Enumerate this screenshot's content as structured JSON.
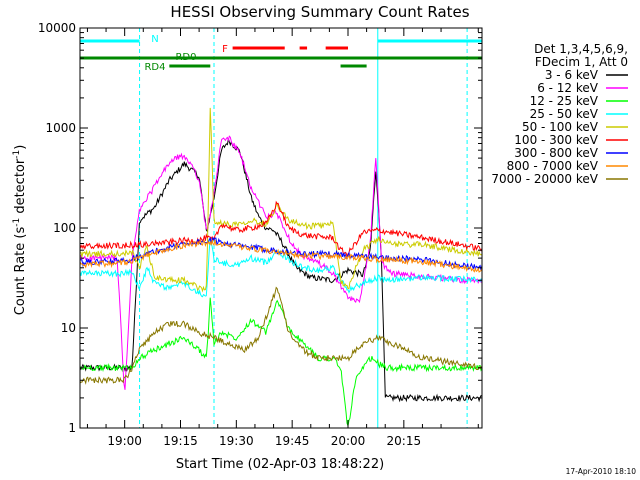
{
  "chart_data": {
    "type": "line",
    "title": "HESSI Observing Summary Count Rates",
    "xlabel": "Start Time (02-Apr-03 18:48:22)",
    "ylabel_prefix": "Count Rate (s",
    "ylabel_sup": "-1",
    "ylabel_mid": " detector",
    "ylabel_suffix": ")",
    "y_scale": "log",
    "ylim": [
      1,
      10000
    ],
    "xlim": [
      -12,
      96
    ],
    "x_unit": "minutes after 19:00",
    "x_ticks": [
      {
        "t": 0,
        "label": "19:00"
      },
      {
        "t": 15,
        "label": "19:15"
      },
      {
        "t": 30,
        "label": "19:30"
      },
      {
        "t": 45,
        "label": "19:45"
      },
      {
        "t": 60,
        "label": "20:00"
      },
      {
        "t": 75,
        "label": "20:15"
      }
    ],
    "y_ticks": [
      {
        "v": 1,
        "label": "1"
      },
      {
        "v": 10,
        "label": "10"
      },
      {
        "v": 100,
        "label": "100"
      },
      {
        "v": 1000,
        "label": "1000"
      },
      {
        "v": 10000,
        "label": "10000"
      }
    ],
    "legend": {
      "placement": "right",
      "header1": "Det 1,3,4,5,6,9,",
      "header2": "FDecim 1, Att 0"
    },
    "series": [
      {
        "name": "3 - 6 keV",
        "color": "#000000",
        "t": [
          -12,
          0,
          2,
          4,
          8,
          12,
          16,
          20,
          22,
          24,
          26,
          28,
          31,
          34,
          36,
          38,
          40,
          42,
          44,
          46,
          50,
          56,
          60,
          64,
          66,
          67.5,
          69,
          70
        ],
        "values": [
          4,
          4,
          4,
          120,
          160,
          300,
          440,
          330,
          90,
          200,
          600,
          750,
          580,
          200,
          130,
          100,
          95,
          75,
          55,
          40,
          32,
          30,
          38,
          34,
          60,
          400,
          50,
          2
        ]
      },
      {
        "name": "6 - 12 keV",
        "color": "#ff00ff",
        "t": [
          -12,
          -2,
          0,
          2,
          4,
          8,
          12,
          15,
          18,
          20,
          22,
          24,
          26,
          28,
          31,
          34,
          38,
          41,
          44,
          48,
          52,
          56,
          60,
          63,
          66,
          67.5,
          69,
          72,
          80,
          90,
          96
        ],
        "values": [
          50,
          50,
          2,
          50,
          150,
          260,
          450,
          530,
          440,
          300,
          90,
          220,
          750,
          800,
          550,
          250,
          130,
          140,
          80,
          50,
          45,
          35,
          20,
          18,
          70,
          550,
          45,
          35,
          33,
          30,
          30
        ]
      },
      {
        "name": "12 - 25 keV",
        "color": "#00ff00",
        "t": [
          -12,
          0,
          2,
          4,
          8,
          12,
          16,
          20,
          22,
          23,
          24,
          26,
          30,
          34,
          38,
          41,
          44,
          48,
          52,
          56,
          58,
          60,
          62,
          66,
          70,
          80,
          96
        ],
        "values": [
          4,
          4,
          4,
          5,
          6,
          7,
          8,
          6,
          5,
          20,
          7,
          9,
          8,
          12,
          9,
          19,
          10,
          7,
          5,
          5,
          4,
          1,
          3,
          5,
          4,
          4,
          4
        ]
      },
      {
        "name": "25 - 50 keV",
        "color": "#00ffff",
        "t": [
          -12,
          0,
          2,
          4,
          6,
          8,
          12,
          16,
          20,
          22,
          23,
          24,
          26,
          30,
          34,
          38,
          41,
          44,
          48,
          52,
          56,
          58,
          60,
          64,
          68,
          70,
          80,
          96
        ],
        "values": [
          35,
          35,
          38,
          24,
          40,
          28,
          25,
          28,
          22,
          22,
          80,
          50,
          45,
          42,
          50,
          45,
          60,
          48,
          40,
          38,
          40,
          30,
          24,
          28,
          32,
          30,
          32,
          30
        ]
      },
      {
        "name": "50 - 100 keV",
        "color": "#cccc00",
        "t": [
          -12,
          0,
          2,
          4,
          6,
          8,
          12,
          16,
          20,
          22,
          23,
          24,
          26,
          30,
          34,
          38,
          41,
          44,
          48,
          52,
          56,
          58,
          60,
          64,
          68,
          70,
          80,
          96
        ],
        "values": [
          55,
          55,
          58,
          40,
          65,
          32,
          30,
          30,
          25,
          25,
          1700,
          120,
          110,
          110,
          120,
          110,
          170,
          120,
          105,
          105,
          110,
          30,
          25,
          60,
          78,
          70,
          68,
          55
        ]
      },
      {
        "name": "100 - 300 keV",
        "color": "#ff0000",
        "t": [
          -12,
          0,
          4,
          8,
          12,
          16,
          20,
          22,
          24,
          26,
          30,
          34,
          38,
          41,
          44,
          48,
          52,
          56,
          58,
          60,
          64,
          68,
          72,
          80,
          96
        ],
        "values": [
          65,
          67,
          68,
          70,
          72,
          75,
          75,
          80,
          75,
          110,
          95,
          100,
          110,
          180,
          100,
          85,
          82,
          80,
          60,
          55,
          90,
          95,
          90,
          80,
          62
        ]
      },
      {
        "name": "300 - 800 keV",
        "color": "#0000ff",
        "t": [
          -12,
          0,
          8,
          16,
          24,
          32,
          40,
          48,
          56,
          64,
          72,
          80,
          96
        ],
        "values": [
          45,
          47,
          58,
          70,
          75,
          65,
          60,
          55,
          55,
          52,
          50,
          48,
          40
        ]
      },
      {
        "name": "800 - 7000 keV",
        "color": "#ff8800",
        "t": [
          -12,
          0,
          8,
          16,
          24,
          32,
          40,
          48,
          56,
          64,
          72,
          80,
          96
        ],
        "values": [
          43,
          45,
          56,
          68,
          72,
          63,
          58,
          53,
          52,
          50,
          48,
          46,
          38
        ]
      },
      {
        "name": "7000 - 20000 keV",
        "color": "#887700",
        "t": [
          -12,
          0,
          2,
          4,
          8,
          12,
          16,
          20,
          24,
          28,
          32,
          36,
          41,
          44,
          48,
          52,
          56,
          60,
          64,
          68,
          72,
          80,
          96
        ],
        "values": [
          3,
          3,
          4,
          6,
          9,
          11,
          11,
          9,
          8,
          7,
          6,
          8,
          26,
          9,
          6,
          5,
          5,
          5,
          7,
          8,
          7,
          5,
          4
        ]
      }
    ],
    "flag_bars": [
      {
        "label": "N",
        "color": "#00ffff",
        "segments": [
          [
            -12,
            4
          ],
          [
            68,
            96
          ]
        ]
      },
      {
        "label": "F",
        "color": "#ff0000",
        "segments": [
          [
            29,
            43
          ],
          [
            47,
            49
          ],
          [
            54,
            60
          ]
        ]
      },
      {
        "label": "RD0",
        "color": "#008800",
        "segments": [
          [
            -12,
            96
          ]
        ]
      },
      {
        "label": "RD4",
        "color": "#008800",
        "segments": [
          [
            12,
            23
          ],
          [
            58,
            65
          ]
        ]
      }
    ],
    "vertical_markers": [
      {
        "t": -12,
        "style": "solid"
      },
      {
        "t": 4,
        "style": "dashed"
      },
      {
        "t": 24,
        "style": "dashed"
      },
      {
        "t": 68,
        "style": "solid"
      },
      {
        "t": 92,
        "style": "dashed"
      }
    ]
  },
  "footer": {
    "timestamp": "17-Apr-2010 18:10"
  }
}
